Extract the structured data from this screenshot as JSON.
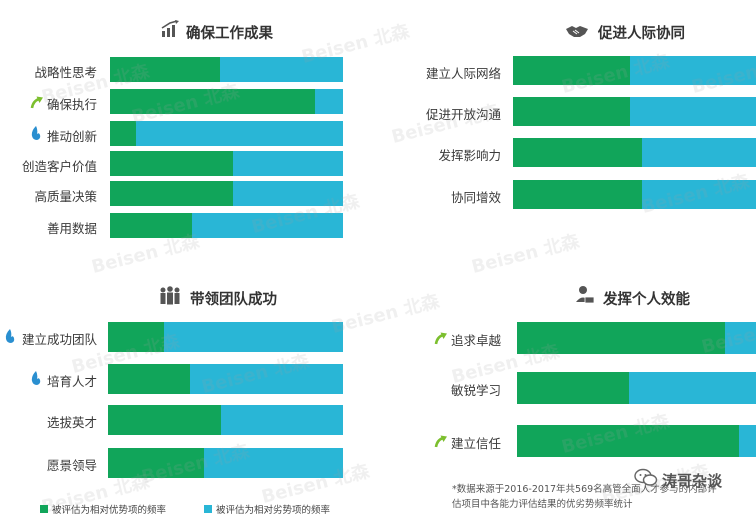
{
  "chart_data": [
    {
      "type": "bar",
      "title": "确保工作成果",
      "icon": "bar-chart-growth-icon",
      "series": [
        {
          "name": "被评估为相对优势项的频率"
        },
        {
          "name": "被评估为相对劣势项的频率"
        }
      ],
      "categories": [
        {
          "label": "战略性思考",
          "icon": "",
          "advantage": 0.47,
          "disadvantage": 0.53
        },
        {
          "label": "确保执行",
          "icon": "arrow-up-icon",
          "advantage": 0.88,
          "disadvantage": 0.12
        },
        {
          "label": "推动创新",
          "icon": "flame-icon",
          "advantage": 0.11,
          "disadvantage": 0.89
        },
        {
          "label": "创造客户价值",
          "icon": "",
          "advantage": 0.53,
          "disadvantage": 0.47
        },
        {
          "label": "高质量决策",
          "icon": "",
          "advantage": 0.53,
          "disadvantage": 0.47
        },
        {
          "label": "善用数据",
          "icon": "",
          "advantage": 0.35,
          "disadvantage": 0.65
        }
      ]
    },
    {
      "type": "bar",
      "title": "促进人际协同",
      "icon": "handshake-icon",
      "series": [
        {
          "name": "被评估为相对优势项的频率"
        },
        {
          "name": "被评估为相对劣势项的频率"
        }
      ],
      "categories": [
        {
          "label": "建立人际网络",
          "icon": "",
          "advantage": 0.48,
          "disadvantage": 0.52
        },
        {
          "label": "促进开放沟通",
          "icon": "",
          "advantage": 0.48,
          "disadvantage": 0.52
        },
        {
          "label": "发挥影响力",
          "icon": "",
          "advantage": 0.53,
          "disadvantage": 0.47
        },
        {
          "label": "协同增效",
          "icon": "",
          "advantage": 0.53,
          "disadvantage": 0.47
        }
      ]
    },
    {
      "type": "bar",
      "title": "带领团队成功",
      "icon": "team-icon",
      "series": [
        {
          "name": "被评估为相对优势项的频率"
        },
        {
          "name": "被评估为相对劣势项的频率"
        }
      ],
      "categories": [
        {
          "label": "建立成功团队",
          "icon": "flame-icon",
          "advantage": 0.24,
          "disadvantage": 0.76
        },
        {
          "label": "培育人才",
          "icon": "flame-icon",
          "advantage": 0.35,
          "disadvantage": 0.65
        },
        {
          "label": "选拔英才",
          "icon": "",
          "advantage": 0.48,
          "disadvantage": 0.52
        },
        {
          "label": "愿景领导",
          "icon": "",
          "advantage": 0.41,
          "disadvantage": 0.59
        }
      ]
    },
    {
      "type": "bar",
      "title": "发挥个人效能",
      "icon": "person-desk-icon",
      "series": [
        {
          "name": "被评估为相对优势项的频率"
        },
        {
          "name": "被评估为相对劣势项的频率"
        }
      ],
      "categories": [
        {
          "label": "追求卓越",
          "icon": "arrow-up-icon",
          "advantage": 0.87,
          "disadvantage": 0.13
        },
        {
          "label": "敏锐学习",
          "icon": "",
          "advantage": 0.47,
          "disadvantage": 0.53
        },
        {
          "label": "建立信任",
          "icon": "arrow-up-icon",
          "advantage": 0.93,
          "disadvantage": 0.07
        }
      ]
    }
  ],
  "legend": {
    "advantage_label": "被评估为相对优势项的频率",
    "disadvantage_label": "被评估为相对劣势项的频率"
  },
  "colors": {
    "advantage": "#11a55a",
    "disadvantage": "#29b6d6",
    "arrow": "#7cbf2e",
    "flame": "#2a8fd0"
  },
  "note": {
    "line1": "*数据来源于2016-2017年共569名高管全面人才参与的内部评",
    "line2": "估项目中各能力评估结果的优劣势频率统计"
  },
  "brand": {
    "text": "涛哥杂谈",
    "icon": "wechat-logo-icon"
  },
  "watermark": {
    "text": "Beisen 北森"
  }
}
